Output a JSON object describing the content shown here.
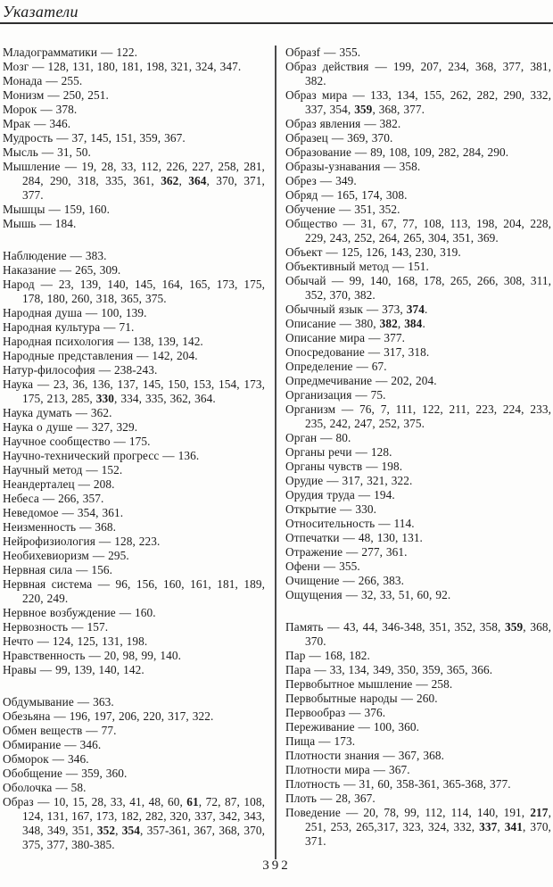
{
  "header": {
    "title": "Указатели"
  },
  "footer": {
    "page_number": "392"
  },
  "index": {
    "left_column": [
      "Младограмматики — 122.",
      "Мозг — 128, 131, 180, 181, 198, 321, 324, 347.",
      "Монада — 255.",
      "Монизм — 250, 251.",
      "Морок — 378.",
      "Мрак — 346.",
      "Мудрость — 37, 145, 151, 359, 367.",
      "Мысль — 31, 50.",
      "Мышление — 19, 28, 33, 112, 226, 227, 258, 281, 284, 290, 318, 335, 361, **362**, **364**, 370, 371, 377.",
      "Мышцы — 159, 160.",
      "Мышь — 184.",
      "",
      "Наблюдение — 383.",
      "Наказание — 265, 309.",
      "Народ — 23, 139, 140, 145, 164, 165, 173, 175, 178, 180, 260, 318, 365, 375.",
      "Народная душа — 100, 139.",
      "Народная культура — 71.",
      "Народная психология — 138, 139, 142.",
      "Народные представления — 142, 204.",
      "Натур-философия — 238-243.",
      "Наука — 23, 36, 136, 137, 145, 150, 153, 154, 173, 175, 213, 285, **330**, 334, 335, 362, 364.",
      "Наука думать — 362.",
      "Наука о душе — 327, 329.",
      "Научное сообщество — 175.",
      "Научно-технический прогресс — 136.",
      "Научный метод — 152.",
      "Неандерталец — 208.",
      "Небеса — 266, 357.",
      "Неведомое — 354, 361.",
      "Неизменность — 368.",
      "Нейрофизиология — 128, 223.",
      "Необихевиоризм — 295.",
      "Нервная сила — 156.",
      "Нервная система — 96, 156, 160, 161, 181, 189, 220, 249.",
      "Нервное возбуждение — 160.",
      "Нервозность — 157.",
      "Нечто — 124, 125, 131, 198.",
      "Нравственность — 20, 98, 99, 140.",
      "Нравы — 99, 139, 140, 142.",
      "",
      "Обдумывание — 363.",
      "Обезьяна — 196, 197, 206, 220, 317, 322.",
      "Обмен веществ — 77.",
      "Обмирание — 346.",
      "Обморок — 346.",
      "Обобщение — 359, 360.",
      "Оболочка — 58.",
      "Образ — 10, 15, 28, 33, 41, 48, 60, **61**, 72, 87, 108, 124, 131, 167, 173, 182, 282, 320, 337, 342, 343, 348, 349, 351, **352**, **354**, 357-361, 367, 368, 370, 375, 377, 380-385."
    ],
    "right_column": [
      "Образf — 355.",
      "Образ действия — 199, 207, 234, 368, 377, 381, 382.",
      "Образ мира — 133, 134, 155, 262, 282, 290, 332, 337, 354, **359**, 368, 377.",
      "Образ явления — 382.",
      "Образец — 369, 370.",
      "Образование — 89, 108, 109, 282, 284, 290.",
      "Образы-узнавания — 358.",
      "Обрез — 349.",
      "Обряд — 165, 174, 308.",
      "Обучение — 351, 352.",
      "Общество — 31, 67, 77, 108, 113, 198, 204, 228, 229, 243, 252, 264, 265, 304, 351, 369.",
      "Объект — 125, 126, 143, 230, 319.",
      "Объективный метод — 151.",
      "Обычай — 99, 140, 168, 178, 265, 266, 308, 311, 352, 370, 382.",
      "Обычный язык — 373, **374**.",
      "Описание — 380, **382**, **384**.",
      "Описание мира — 377.",
      "Опосредование — 317, 318.",
      "Определение — 67.",
      "Опредмечивание — 202, 204.",
      "Организация — 75.",
      "Организм — 76, 7, 111, 122, 211, 223, 224, 233, 235, 242, 247, 252, 375.",
      "Орган — 80.",
      "Органы речи — 128.",
      "Органы чувств — 198.",
      "Орудие — 317, 321, 322.",
      "Орудия труда — 194.",
      "Открытие — 330.",
      "Относительность — 114.",
      "Отпечатки — 48, 130, 131.",
      "Отражение — 277, 361.",
      "Офени — 355.",
      "Очищение — 266, 383.",
      "Ощущения — 32, 33, 51, 60, 92.",
      "",
      "Память — 43, 44, 346-348, 351, 352, 358, **359**, 368, 370.",
      "Пар — 168, 182.",
      "Пара — 33, 134, 349, 350, 359, 365, 366.",
      "Первобытное мышление — 258.",
      "Первобытные народы — 260.",
      "Первообраз — 376.",
      "Переживание — 100, 360.",
      "Пища — 173.",
      "Плотности знания — 367, 368.",
      "Плотности мира — 367.",
      "Плотность — 31, 60, 358-361, 365-368, 377.",
      "Плоть — 28, 367.",
      "Поведение — 20, 78, 99, 112, 114, 140, 191, **217**, 251, 253, 265,317, 323, 324, 332, **337**, **341**, 370, 371."
    ]
  }
}
